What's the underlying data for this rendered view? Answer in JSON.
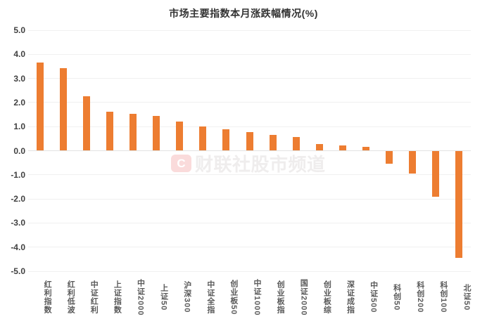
{
  "chart_data": {
    "type": "bar",
    "title": "市场主要指数本月涨跌幅情况(%)",
    "categories": [
      "红利指数",
      "红利低波",
      "中证红利",
      "上证指数",
      "中证2000",
      "上证50",
      "沪深300",
      "中证全指",
      "创业板50",
      "中证1000",
      "创业板指",
      "国证2000",
      "创业板综",
      "深证成指",
      "中证500",
      "科创50",
      "科创200",
      "科创100",
      "北证50"
    ],
    "values": [
      3.65,
      3.42,
      2.27,
      1.63,
      1.52,
      1.43,
      1.21,
      1.02,
      0.9,
      0.77,
      0.67,
      0.56,
      0.27,
      0.21,
      0.17,
      -0.53,
      -0.96,
      -1.9,
      -4.44
    ],
    "xlabel": "",
    "ylabel": "",
    "ylim": [
      -5.0,
      5.0
    ],
    "ytick_step": 1.0,
    "ytick_labels": [
      "5.0",
      "4.0",
      "3.0",
      "2.0",
      "1.0",
      "0.0",
      "-1.0",
      "-2.0",
      "-3.0",
      "-4.0",
      "-5.0"
    ],
    "grid": true,
    "legend": null,
    "bar_color": "#ED7D31",
    "colors": {
      "grid": "#f0f0f0",
      "zero_line": "#e2e2e2",
      "title": "#333333",
      "ytick": "#404040",
      "xtick": "#595959",
      "background": "#ffffff"
    }
  },
  "watermark": {
    "logo_letter": "C",
    "text": "财联社股市频道",
    "logo_bg": "#fadbdb",
    "text_color": "#efeded"
  }
}
